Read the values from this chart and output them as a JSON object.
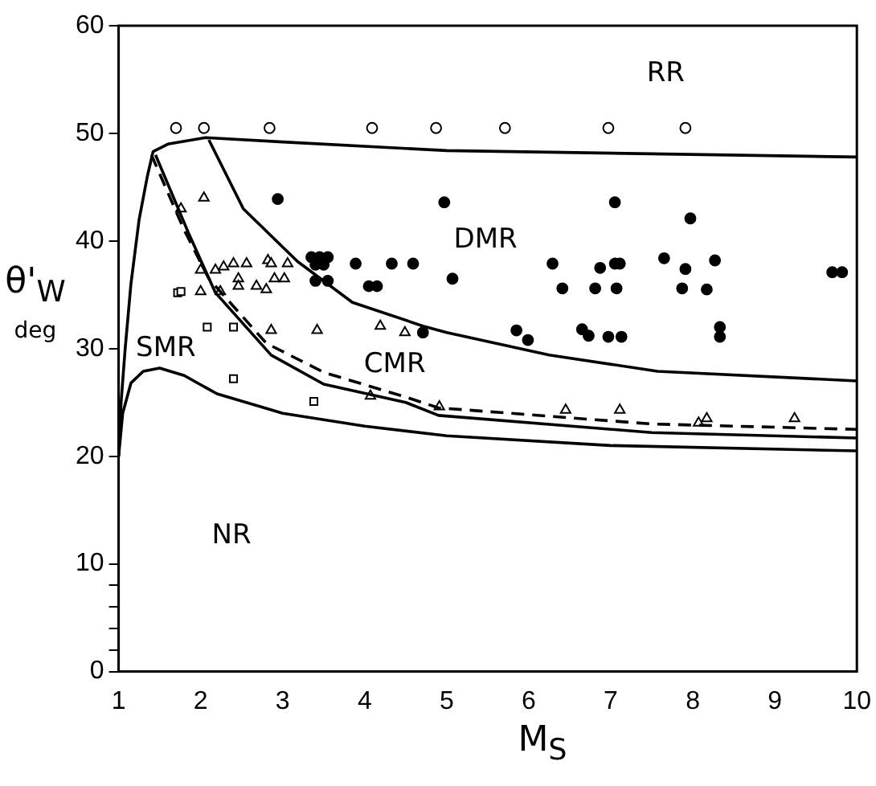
{
  "chart_data": {
    "type": "scatter",
    "xlabel": "M$_{S}$",
    "ylabel": "θ'$_{W}$ deg",
    "xlim": [
      1,
      10
    ],
    "xticks": [
      1,
      2,
      3,
      4,
      5,
      6,
      7,
      8,
      9,
      10
    ],
    "ylim": [
      0,
      60
    ],
    "yticks": [
      0,
      {
        "value": 2,
        "label": null
      },
      {
        "value": 4,
        "label": null
      },
      {
        "value": 6,
        "label": null
      },
      {
        "value": 8,
        "label": null
      },
      10,
      20,
      30,
      40,
      50,
      60
    ],
    "grid": false,
    "legend": false,
    "series": [
      {
        "type": "line",
        "color": "#000000",
        "marker": "none",
        "line_style": "solid",
        "x": [
          1.0,
          1.03,
          1.08,
          1.15,
          1.25,
          1.35,
          1.42,
          1.6,
          2.06,
          3,
          5,
          7.5,
          10
        ],
        "values": [
          20,
          25,
          30,
          36,
          42,
          46,
          48.3,
          49,
          49.6,
          49.2,
          48.4,
          48.1,
          47.8
        ]
      },
      {
        "type": "line",
        "color": "#000000",
        "marker": "none",
        "line_style": "solid",
        "x": [
          2.1,
          2.52,
          3.18,
          3.85,
          4.71,
          5.0,
          6.25,
          7.57,
          10
        ],
        "values": [
          49.4,
          43.0,
          38.1,
          34.3,
          32.1,
          31.5,
          29.4,
          27.9,
          27.0
        ]
      },
      {
        "type": "line",
        "color": "#000000",
        "marker": "none",
        "line_style": "dashed",
        "x": [
          1.4,
          1.8,
          2.1,
          2.8,
          3.5,
          4.5,
          4.9,
          7.5,
          10
        ],
        "values": [
          48,
          41,
          36.5,
          30.5,
          27.8,
          25.5,
          24.5,
          23.0,
          22.5
        ]
      },
      {
        "type": "line",
        "color": "#000000",
        "marker": "none",
        "line_style": "solid",
        "x": [
          1.45,
          1.86,
          2.18,
          2.86,
          3.5,
          4.5,
          4.9,
          7.5,
          10
        ],
        "values": [
          48,
          40.6,
          35.2,
          29.4,
          26.7,
          25.0,
          23.8,
          22.2,
          21.7
        ]
      },
      {
        "type": "line",
        "color": "#000000",
        "marker": "none",
        "line_style": "solid",
        "x": [
          1.0,
          1.05,
          1.15,
          1.3,
          1.5,
          1.8,
          2.2,
          3.0,
          4.0,
          5,
          7,
          10
        ],
        "values": [
          20,
          24,
          26.8,
          27.9,
          28.2,
          27.5,
          25.8,
          24.0,
          22.8,
          21.9,
          21.0,
          20.5
        ]
      },
      {
        "type": "scatter",
        "color": "#ffffff",
        "marker": "circle",
        "x": [
          1.7,
          2.04,
          2.84,
          4.09,
          4.87,
          5.71,
          6.97,
          7.91
        ],
        "values": [
          50.5,
          50.5,
          50.5,
          50.5,
          50.5,
          50.5,
          50.5,
          50.5
        ]
      },
      {
        "type": "scatter",
        "color": "#000000",
        "marker": "circle",
        "x": [
          2.94,
          4.97,
          3.35,
          3.45,
          3.55,
          3.4,
          3.5,
          3.4,
          3.55,
          3.89,
          4.33,
          4.59,
          4.05,
          4.15,
          5.07,
          4.71,
          6.29,
          6.41,
          5.85,
          5.99,
          6.87,
          7.05,
          7.11,
          7.05,
          6.81,
          7.07,
          6.65,
          6.73,
          6.97,
          7.13,
          7.65,
          7.91,
          7.97,
          8.27,
          7.87,
          8.17,
          8.33,
          8.33,
          9.7,
          9.82
        ],
        "values": [
          43.9,
          43.6,
          38.5,
          38.5,
          38.5,
          37.8,
          37.8,
          36.3,
          36.3,
          37.9,
          37.9,
          37.9,
          35.8,
          35.8,
          36.5,
          31.5,
          37.9,
          35.6,
          31.7,
          30.8,
          37.5,
          37.9,
          37.9,
          43.6,
          35.6,
          35.6,
          31.8,
          31.2,
          31.1,
          31.1,
          38.4,
          37.4,
          42.1,
          38.2,
          35.6,
          35.5,
          32.0,
          31.1,
          37.1,
          37.1
        ]
      },
      {
        "type": "scatter",
        "color": "#ffffff",
        "marker": "triangle",
        "x": [
          1.76,
          2.04,
          2.0,
          2.18,
          2.28,
          2.4,
          2.56,
          2.82,
          2.86,
          3.06,
          2.9,
          3.02,
          2.46,
          2.46,
          2.68,
          2.8,
          2.0,
          2.24,
          2.86,
          3.42,
          4.19,
          4.49,
          4.07,
          4.91,
          6.45,
          7.11,
          8.07,
          8.17,
          9.24
        ],
        "values": [
          43.0,
          44.0,
          37.3,
          37.3,
          37.6,
          37.9,
          37.9,
          38.2,
          37.9,
          37.9,
          36.5,
          36.5,
          36.5,
          35.8,
          35.8,
          35.5,
          35.3,
          35.3,
          31.7,
          31.7,
          32.1,
          31.5,
          25.6,
          24.6,
          24.3,
          24.3,
          23.1,
          23.5,
          23.5
        ]
      },
      {
        "type": "scatter",
        "color": "#ffffff",
        "marker": "square",
        "x": [
          1.72,
          1.76,
          2.08,
          2.4,
          2.4,
          3.38
        ],
        "values": [
          35.2,
          35.3,
          32.0,
          32.0,
          27.2,
          25.1
        ]
      }
    ],
    "annotations": [
      "RR",
      "DMR",
      "CMR",
      "SMR",
      "NR"
    ]
  }
}
